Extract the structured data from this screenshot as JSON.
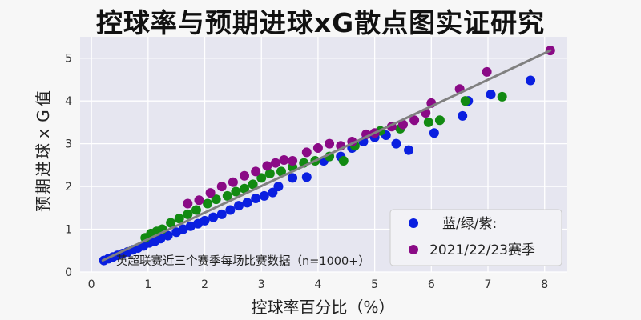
{
  "chart_data": {
    "type": "scatter",
    "title": "控球率与预期进球xG散点图实证研究",
    "xlabel": "控球率百分比（%）",
    "ylabel": "预期进球xG值",
    "xlim": [
      -0.2,
      8.4
    ],
    "ylim": [
      0,
      5.5
    ],
    "xticks": [
      0,
      1,
      2,
      3,
      4,
      5,
      6,
      7,
      8
    ],
    "yticks": [
      0,
      1,
      2,
      3,
      4,
      5
    ],
    "grid": true,
    "legend_position": "lower-right",
    "legend_entries": [
      "蓝/绿/紫:",
      "2021/22/23赛季"
    ],
    "annotation": "英超联赛近三个赛季每场比赛数据（n=1000+）",
    "colors": {
      "blue": "#0a1fe0",
      "green": "#128a12",
      "purple": "#8a0a86",
      "trend": "#808080"
    },
    "trend_line": {
      "x": [
        0.2,
        8.1
      ],
      "y": [
        0.27,
        5.18
      ]
    },
    "series": [
      {
        "color": "blue",
        "x": [
          0.22,
          0.3,
          0.38,
          0.46,
          0.55,
          0.64,
          0.73,
          0.82,
          0.92,
          1.02,
          1.12,
          1.22,
          1.35,
          1.5,
          1.62,
          1.75,
          1.88,
          2.0,
          2.15,
          2.3,
          2.45,
          2.6,
          2.75,
          2.9,
          3.05,
          3.2,
          3.3,
          3.55,
          3.8,
          4.1,
          4.4,
          4.6,
          4.8,
          5.0,
          5.2,
          5.38,
          5.6,
          6.05,
          6.55,
          6.65,
          7.05,
          7.75
        ],
        "y": [
          0.27,
          0.31,
          0.35,
          0.39,
          0.43,
          0.47,
          0.52,
          0.56,
          0.61,
          0.68,
          0.72,
          0.78,
          0.85,
          0.93,
          1.0,
          1.07,
          1.13,
          1.2,
          1.28,
          1.35,
          1.45,
          1.55,
          1.62,
          1.72,
          1.78,
          1.86,
          2.0,
          2.2,
          2.22,
          2.6,
          2.7,
          2.9,
          3.05,
          3.15,
          3.2,
          3.0,
          2.85,
          3.25,
          3.65,
          4.0,
          4.15,
          4.48
        ]
      },
      {
        "color": "green",
        "x": [
          0.95,
          1.05,
          1.15,
          1.25,
          1.4,
          1.55,
          1.7,
          1.85,
          2.05,
          2.2,
          2.4,
          2.55,
          2.7,
          2.85,
          3.0,
          3.15,
          3.35,
          3.55,
          3.75,
          3.95,
          4.2,
          4.45,
          4.65,
          5.1,
          5.45,
          5.95,
          6.15,
          6.6,
          7.25
        ],
        "y": [
          0.8,
          0.9,
          0.95,
          1.0,
          1.15,
          1.25,
          1.35,
          1.45,
          1.6,
          1.7,
          1.78,
          1.88,
          1.95,
          2.05,
          2.2,
          2.3,
          2.35,
          2.45,
          2.55,
          2.6,
          2.7,
          2.6,
          2.95,
          3.3,
          3.35,
          3.5,
          3.55,
          4.0,
          4.1
        ]
      },
      {
        "color": "purple",
        "x": [
          1.7,
          1.9,
          2.1,
          2.3,
          2.5,
          2.7,
          2.9,
          3.1,
          3.25,
          3.4,
          3.55,
          3.8,
          4.0,
          4.2,
          4.4,
          4.6,
          4.85,
          5.0,
          5.3,
          5.5,
          5.7,
          5.9,
          6.0,
          6.5,
          6.98,
          8.1
        ],
        "y": [
          1.6,
          1.68,
          1.85,
          2.0,
          2.1,
          2.25,
          2.35,
          2.48,
          2.55,
          2.62,
          2.6,
          2.8,
          2.9,
          3.0,
          2.95,
          3.05,
          3.22,
          3.25,
          3.4,
          3.45,
          3.55,
          3.72,
          3.95,
          4.28,
          4.68,
          5.18
        ]
      }
    ]
  }
}
